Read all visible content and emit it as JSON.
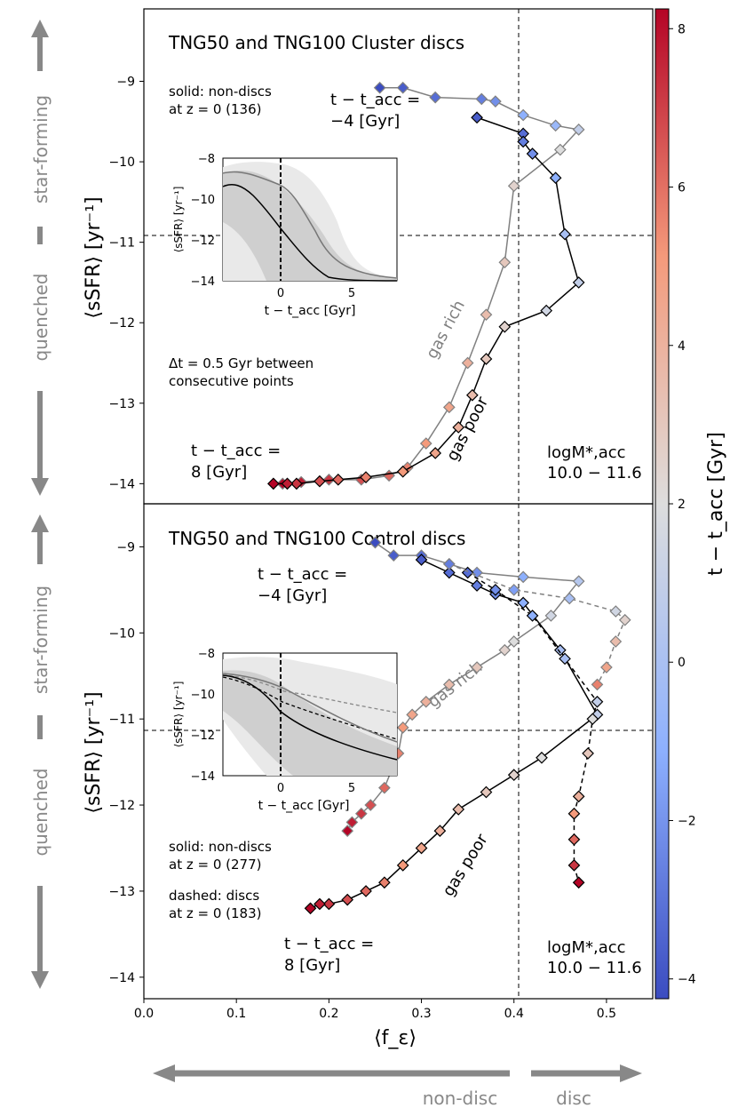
{
  "chart_data": [
    {
      "type": "line",
      "panel": "top",
      "title": "TNG50 and TNG100 Cluster discs",
      "ylabel": "⟨sSFR⟩ [yr⁻¹]",
      "xlabel": "⟨f_ε⟩",
      "xlim": [
        0.0,
        0.55
      ],
      "ylim": [
        -14.25,
        -8.1
      ],
      "yticks": [
        "−9",
        "−10",
        "−11",
        "−12",
        "−13",
        "−14"
      ],
      "ytick_values": [
        -9,
        -10,
        -11,
        -12,
        -13,
        -14
      ],
      "side_labels": {
        "up": "star-forming",
        "down": "quenched"
      },
      "annotations": {
        "solid_note_1": "solid: non-discs",
        "solid_note_2": "at z = 0 (136)",
        "start_1": "t − t_acc =",
        "start_2": "−4 [Gyr]",
        "end_1": "t − t_acc =",
        "end_2": "8 [Gyr]",
        "dt_1": "Δt = 0.5 Gyr between",
        "dt_2": "consecutive points",
        "gas_rich": "gas rich",
        "gas_poor": "gas poor",
        "mass_1": "logM*,acc",
        "mass_2": "10.0 − 11.6"
      },
      "reference_lines": {
        "x": 0.4,
        "y": -11
      },
      "series": [
        {
          "name": "gas rich",
          "style": "solid-gray",
          "t": [
            -4,
            -3.5,
            -3,
            -2.5,
            -2,
            -1,
            -0.5,
            1,
            2,
            2.5,
            3,
            3.5,
            4,
            4.5,
            5,
            5.5,
            6,
            6.5,
            7,
            7.5,
            8
          ],
          "x": [
            0.255,
            0.28,
            0.315,
            0.365,
            0.38,
            0.41,
            0.445,
            0.47,
            0.45,
            0.4,
            0.39,
            0.37,
            0.35,
            0.33,
            0.305,
            0.285,
            0.265,
            0.235,
            0.2,
            0.17,
            0.15
          ],
          "y": [
            -9.08,
            -9.08,
            -9.2,
            -9.22,
            -9.25,
            -9.42,
            -9.55,
            -9.6,
            -9.85,
            -10.3,
            -11.25,
            -11.9,
            -12.5,
            -13.05,
            -13.5,
            -13.8,
            -13.9,
            -13.95,
            -13.95,
            -13.98,
            -14.0
          ]
        },
        {
          "name": "gas poor",
          "style": "solid-black",
          "t": [
            -3.5,
            -3,
            -2.5,
            -2,
            -1,
            0,
            1,
            1.5,
            2.5,
            3,
            3.5,
            4,
            4.5,
            5,
            5.5,
            6,
            6.5,
            7,
            7.5,
            8
          ],
          "x": [
            0.36,
            0.41,
            0.41,
            0.42,
            0.445,
            0.455,
            0.47,
            0.435,
            0.39,
            0.37,
            0.355,
            0.34,
            0.315,
            0.28,
            0.24,
            0.21,
            0.19,
            0.165,
            0.155,
            0.14
          ],
          "y": [
            -9.45,
            -9.65,
            -9.75,
            -9.9,
            -10.2,
            -10.9,
            -11.5,
            -11.85,
            -12.05,
            -12.45,
            -12.9,
            -13.3,
            -13.62,
            -13.85,
            -13.92,
            -13.95,
            -13.97,
            -14.0,
            -14.0,
            -14.0
          ]
        }
      ],
      "inset": {
        "xlabel": "t − t_acc [Gyr]",
        "ylabel": "⟨sSFR⟩ [yr⁻¹]",
        "xlim": [
          -4,
          8
        ],
        "ylim": [
          -14,
          -8
        ],
        "xticks": [
          "0",
          "5"
        ],
        "yticks": [
          "−8",
          "−10",
          "−12",
          "−14"
        ]
      }
    },
    {
      "type": "line",
      "panel": "bottom",
      "title": "TNG50 and TNG100 Control discs",
      "ylabel": "⟨sSFR⟩ [yr⁻¹]",
      "xlabel": "⟨f_ε⟩",
      "xlim": [
        0.0,
        0.55
      ],
      "ylim": [
        -14.25,
        -8.5
      ],
      "yticks": [
        "−9",
        "−10",
        "−11",
        "−12",
        "−13",
        "−14"
      ],
      "ytick_values": [
        -9,
        -10,
        -11,
        -12,
        -13,
        -14
      ],
      "xticks": [
        "0.0",
        "0.1",
        "0.2",
        "0.3",
        "0.4",
        "0.5"
      ],
      "xtick_values": [
        0,
        0.1,
        0.2,
        0.3,
        0.4,
        0.5
      ],
      "side_labels": {
        "up": "star-forming",
        "down": "quenched"
      },
      "annotations": {
        "solid_note_1": "solid: non-discs",
        "solid_note_2": "at z = 0 (277)",
        "dashed_note_1": "dashed: discs",
        "dashed_note_2": "at z = 0 (183)",
        "start_1": "t − t_acc =",
        "start_2": "−4 [Gyr]",
        "end_1": "t − t_acc =",
        "end_2": "8 [Gyr]",
        "gas_rich": "gas rich",
        "gas_poor": "gas poor",
        "mass_1": "logM*,acc",
        "mass_2": "10.0 − 11.6"
      },
      "reference_lines": {
        "x": 0.4,
        "y": -11
      },
      "series": [
        {
          "name": "gas rich",
          "style": "solid-gray",
          "t": [
            -4,
            -3.5,
            -3,
            -2.5,
            -2,
            -1,
            0.5,
            1.5,
            2,
            2.5,
            3,
            3.5,
            4,
            4.5,
            5,
            5.5,
            6,
            6.5,
            7,
            7.5,
            8
          ],
          "x": [
            0.25,
            0.27,
            0.3,
            0.33,
            0.36,
            0.41,
            0.47,
            0.44,
            0.4,
            0.39,
            0.36,
            0.33,
            0.305,
            0.29,
            0.28,
            0.275,
            0.26,
            0.245,
            0.235,
            0.225,
            0.22
          ],
          "y": [
            -8.95,
            -9.1,
            -9.1,
            -9.2,
            -9.3,
            -9.35,
            -9.4,
            -9.8,
            -10.1,
            -10.2,
            -10.4,
            -10.6,
            -10.8,
            -10.95,
            -11.1,
            -11.4,
            -11.8,
            -12.0,
            -12.1,
            -12.2,
            -12.3
          ]
        },
        {
          "name": "gas poor",
          "style": "solid-black",
          "t": [
            -3.5,
            -3,
            -2.5,
            -2,
            -1,
            0,
            1,
            2,
            2.5,
            3,
            3.5,
            4,
            4.5,
            5,
            5.5,
            6,
            6.5,
            7,
            7.5,
            8
          ],
          "x": [
            0.3,
            0.33,
            0.36,
            0.38,
            0.41,
            0.45,
            0.49,
            0.43,
            0.4,
            0.37,
            0.34,
            0.32,
            0.3,
            0.28,
            0.26,
            0.24,
            0.22,
            0.2,
            0.19,
            0.18
          ],
          "y": [
            -9.15,
            -9.3,
            -9.45,
            -9.55,
            -9.65,
            -10.2,
            -10.95,
            -11.45,
            -11.65,
            -11.85,
            -12.05,
            -12.3,
            -12.5,
            -12.7,
            -12.9,
            -13.0,
            -13.1,
            -13.15,
            -13.15,
            -13.2
          ]
        },
        {
          "name": "discs (dashed)",
          "style": "dashed-black",
          "t": [
            -3,
            -2,
            -1,
            0,
            1,
            2,
            3,
            4,
            5,
            6,
            7,
            8
          ],
          "x": [
            0.35,
            0.38,
            0.42,
            0.455,
            0.49,
            0.485,
            0.48,
            0.47,
            0.465,
            0.465,
            0.465,
            0.47
          ],
          "y": [
            -9.3,
            -9.5,
            -9.8,
            -10.3,
            -10.8,
            -11.0,
            -11.4,
            -11.9,
            -12.1,
            -12.4,
            -12.7,
            -12.9
          ]
        },
        {
          "name": "dashed gray",
          "style": "dashed-gray",
          "t": [
            -2.5,
            -1.5,
            0,
            1.5,
            2.5,
            3.5,
            4.5,
            5.5
          ],
          "x": [
            0.33,
            0.4,
            0.46,
            0.51,
            0.52,
            0.51,
            0.5,
            0.49
          ],
          "y": [
            -9.2,
            -9.5,
            -9.6,
            -9.75,
            -9.85,
            -10.1,
            -10.4,
            -10.6
          ]
        }
      ],
      "inset": {
        "xlabel": "t − t_acc [Gyr]",
        "ylabel": "⟨sSFR⟩ [yr⁻¹]",
        "xlim": [
          -4,
          8
        ],
        "ylim": [
          -14,
          -8
        ],
        "xticks": [
          "0",
          "5"
        ],
        "yticks": [
          "−8",
          "−10",
          "−12",
          "−14"
        ]
      }
    }
  ],
  "colorbar": {
    "label": "t − t_acc [Gyr]",
    "range": [
      -4,
      8
    ],
    "ticks": [
      "8",
      "6",
      "4",
      "2",
      "0",
      "−2",
      "−4"
    ],
    "tick_values": [
      8,
      6,
      4,
      2,
      0,
      -2,
      -4
    ],
    "colors": {
      "low": "#3b4cc0",
      "mid": "#dddddd",
      "high": "#b40426"
    }
  },
  "bottom_arrows": {
    "left_label": "non-disc",
    "right_label": "disc",
    "arrow_color": "#888888"
  }
}
